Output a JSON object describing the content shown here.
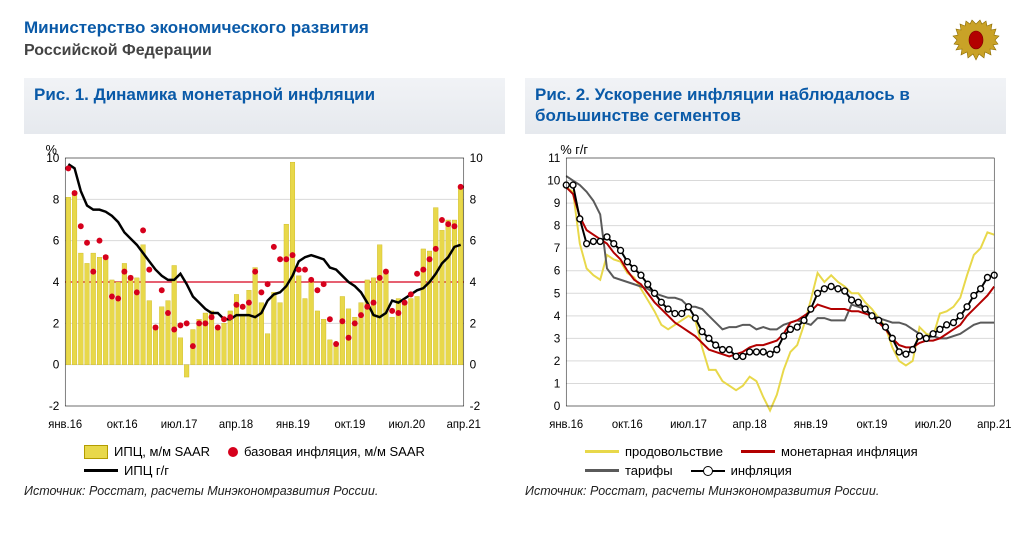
{
  "header": {
    "ministry": "Министерство экономического развития",
    "federation": "Российской Федерации"
  },
  "chart1": {
    "title": "Рис. 1. Динамика монетарной инфляции",
    "type": "combo-bar-line",
    "y_left_label": "%",
    "ylim": [
      -2,
      10
    ],
    "ytick_step": 2,
    "x_ticks": [
      "янв.16",
      "окт.16",
      "июл.17",
      "апр.18",
      "янв.19",
      "окт.19",
      "июл.20",
      "апр.21"
    ],
    "grid_color": "#d9d9d9",
    "bar_color": "#e8d84a",
    "bar_border": "#bfa900",
    "cpi_line_color": "#000000",
    "cpi_line_width": 2.5,
    "dot_color": "#d6001c",
    "dot_radius": 3,
    "refline_y": 4,
    "refline_color": "#d6001c",
    "bars_mm_saar": [
      8.1,
      8.4,
      5.4,
      4.9,
      5.4,
      5.2,
      5.3,
      4.1,
      4.0,
      4.9,
      4.3,
      4.2,
      5.8,
      3.1,
      1.9,
      2.8,
      3.1,
      4.8,
      1.3,
      -0.6,
      1.7,
      2.2,
      2.5,
      2.6,
      1.8,
      2.0,
      2.6,
      3.4,
      2.4,
      3.6,
      4.7,
      3.0,
      1.5,
      3.5,
      3.0,
      6.8,
      9.8,
      4.3,
      3.2,
      4.0,
      2.6,
      2.2,
      1.2,
      1.0,
      3.3,
      2.7,
      2.3,
      3.0,
      4.1,
      4.2,
      5.8,
      4.6,
      2.3,
      3.2,
      3.0,
      3.2,
      3.3,
      5.6,
      5.5,
      7.6,
      6.5,
      7.0,
      7.0,
      8.6
    ],
    "core_dots": [
      9.5,
      8.3,
      6.7,
      5.9,
      4.5,
      6.0,
      5.2,
      3.3,
      3.2,
      4.5,
      4.2,
      3.5,
      6.5,
      4.6,
      1.8,
      3.6,
      2.5,
      1.7,
      1.9,
      2.0,
      0.9,
      2.0,
      2.0,
      2.3,
      1.8,
      2.2,
      2.3,
      2.9,
      2.8,
      3.0,
      4.5,
      3.5,
      3.9,
      5.7,
      5.1,
      5.1,
      5.3,
      4.6,
      4.6,
      4.1,
      3.6,
      3.9,
      2.2,
      1.0,
      2.1,
      1.3,
      2.0,
      2.4,
      2.8,
      3.0,
      4.2,
      4.5,
      2.6,
      2.5,
      3.0,
      3.4,
      4.4,
      4.6,
      5.1,
      5.6,
      7.0,
      6.8,
      6.7,
      8.6
    ],
    "cpi_line": [
      9.7,
      9.5,
      8.4,
      7.7,
      7.5,
      7.5,
      7.4,
      7.2,
      6.9,
      6.4,
      6.1,
      5.8,
      5.4,
      5.0,
      4.6,
      4.3,
      4.1,
      4.1,
      4.4,
      3.9,
      3.3,
      3.0,
      2.7,
      2.5,
      2.5,
      2.2,
      2.2,
      2.4,
      2.4,
      2.4,
      2.3,
      2.5,
      3.1,
      3.4,
      3.5,
      3.8,
      4.3,
      5.0,
      5.2,
      5.3,
      5.2,
      5.1,
      4.7,
      4.6,
      4.3,
      4.0,
      3.8,
      3.5,
      3.0,
      2.4,
      2.3,
      2.5,
      3.1,
      3.0,
      3.2,
      3.4,
      3.6,
      3.7,
      4.0,
      4.4,
      4.9,
      5.2,
      5.7,
      5.8
    ],
    "legend": {
      "bars": "ИПЦ, м/м SAAR",
      "dots": "базовая инфляция, м/м SAAR",
      "line": "ИПЦ г/г"
    },
    "source": "Источник: Росстат, расчеты Минэкономразвития России."
  },
  "chart2": {
    "title": "Рис. 2. Ускорение инфляции наблюдалось в большинстве сегментов",
    "type": "line",
    "y_label": "% г/г",
    "ylim": [
      0,
      11
    ],
    "ytick_step": 1,
    "x_ticks": [
      "янв.16",
      "окт.16",
      "июл.17",
      "апр.18",
      "янв.19",
      "окт.19",
      "июл.20",
      "апр.21"
    ],
    "grid_color": "#d9d9d9",
    "series": {
      "food": {
        "label": "продовольствие",
        "color": "#e8d84a",
        "width": 2,
        "values": [
          9.7,
          9.5,
          7.2,
          6.1,
          5.8,
          5.6,
          6.7,
          6.5,
          6.4,
          5.9,
          5.7,
          5.2,
          4.7,
          4.2,
          3.6,
          3.4,
          3.6,
          3.8,
          4.0,
          3.8,
          2.6,
          1.6,
          1.6,
          1.1,
          0.9,
          0.7,
          0.9,
          1.3,
          1.1,
          0.4,
          -0.2,
          0.5,
          1.6,
          2.4,
          2.7,
          3.6,
          4.7,
          5.9,
          5.5,
          5.8,
          5.5,
          5.3,
          5.0,
          5.0,
          4.6,
          4.3,
          3.9,
          3.5,
          2.6,
          2.0,
          1.8,
          2.0,
          3.5,
          3.2,
          3.1,
          4.1,
          4.2,
          4.4,
          4.8,
          5.8,
          6.7,
          7.0,
          7.7,
          7.6
        ]
      },
      "monetary": {
        "label": "монетарная инфляция",
        "color": "#b30000",
        "width": 2,
        "values": [
          9.7,
          9.4,
          8.4,
          7.8,
          7.6,
          7.4,
          7.2,
          6.8,
          6.5,
          6.0,
          5.6,
          5.4,
          5.0,
          4.6,
          4.3,
          4.0,
          3.7,
          3.5,
          3.3,
          3.1,
          2.8,
          2.5,
          2.4,
          2.3,
          2.2,
          2.3,
          2.4,
          2.6,
          2.7,
          2.7,
          2.8,
          2.9,
          3.2,
          3.7,
          3.8,
          4.0,
          4.2,
          4.5,
          4.4,
          4.3,
          4.3,
          4.3,
          4.2,
          4.2,
          4.1,
          4.0,
          3.7,
          3.4,
          3.0,
          2.7,
          2.6,
          2.6,
          2.8,
          2.9,
          2.9,
          3.0,
          3.2,
          3.4,
          3.6,
          4.0,
          4.3,
          4.6,
          4.9,
          5.3
        ]
      },
      "tariffs": {
        "label": "тарифы",
        "color": "#5a5a5a",
        "width": 2,
        "values": [
          10.2,
          10.0,
          9.8,
          9.5,
          9.1,
          8.5,
          6.1,
          5.7,
          5.6,
          5.5,
          5.4,
          5.3,
          5.2,
          5.0,
          4.9,
          4.8,
          4.8,
          4.7,
          4.4,
          4.4,
          4.3,
          4.0,
          3.7,
          3.4,
          3.5,
          3.5,
          3.6,
          3.6,
          3.4,
          3.5,
          3.4,
          3.4,
          3.6,
          3.7,
          3.8,
          3.7,
          3.6,
          3.9,
          3.9,
          3.8,
          3.8,
          3.8,
          4.5,
          4.4,
          4.3,
          4.0,
          3.9,
          3.8,
          3.7,
          3.7,
          3.6,
          3.4,
          3.2,
          3.0,
          3.1,
          3.0,
          3.0,
          3.1,
          3.2,
          3.4,
          3.6,
          3.7,
          3.7,
          3.7
        ]
      },
      "infl": {
        "label": "инфляция",
        "color": "#000000",
        "width": 2,
        "markers": true,
        "values": [
          9.8,
          9.8,
          8.3,
          7.2,
          7.3,
          7.3,
          7.5,
          7.2,
          6.9,
          6.4,
          6.1,
          5.8,
          5.4,
          5.0,
          4.6,
          4.3,
          4.1,
          4.1,
          4.4,
          3.9,
          3.3,
          3.0,
          2.7,
          2.5,
          2.5,
          2.2,
          2.2,
          2.4,
          2.4,
          2.4,
          2.3,
          2.5,
          3.1,
          3.4,
          3.5,
          3.8,
          4.3,
          5.0,
          5.2,
          5.3,
          5.2,
          5.1,
          4.7,
          4.6,
          4.3,
          4.0,
          3.8,
          3.5,
          3.0,
          2.4,
          2.3,
          2.5,
          3.1,
          3.0,
          3.2,
          3.4,
          3.6,
          3.7,
          4.0,
          4.4,
          4.9,
          5.2,
          5.7,
          5.8
        ]
      }
    },
    "source": "Источник: Росстат, расчеты Минэкономразвития России."
  }
}
